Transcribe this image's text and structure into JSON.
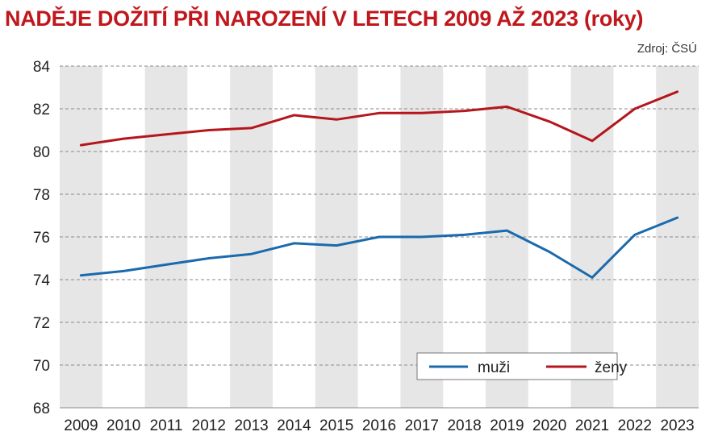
{
  "header": {
    "title": "NADĚJE DOŽITÍ PŘI NAROZENÍ V LETECH 2009 AŽ 2023 (roky)",
    "source": "Zdroj: ČSÚ"
  },
  "chart_data": {
    "type": "line",
    "title": "NADĚJE DOŽITÍ PŘI NAROZENÍ V LETECH 2009 AŽ 2023 (roky)",
    "xlabel": "",
    "ylabel": "",
    "ylim": [
      68,
      84
    ],
    "yticks": [
      68,
      70,
      72,
      74,
      76,
      78,
      80,
      82,
      84
    ],
    "x": [
      "2009",
      "2010",
      "2011",
      "2012",
      "2013",
      "2014",
      "2015",
      "2016",
      "2017",
      "2018",
      "2019",
      "2020",
      "2021",
      "2022",
      "2023"
    ],
    "series": [
      {
        "name": "muži",
        "color": "#1a6aad",
        "values": [
          74.2,
          74.4,
          74.7,
          75.0,
          75.2,
          75.7,
          75.6,
          76.0,
          76.0,
          76.1,
          76.3,
          75.3,
          74.1,
          76.1,
          76.9
        ]
      },
      {
        "name": "ženy",
        "color": "#b5161c",
        "values": [
          80.3,
          80.6,
          80.8,
          81.0,
          81.1,
          81.7,
          81.5,
          81.8,
          81.8,
          81.9,
          82.1,
          81.4,
          80.5,
          82.0,
          82.8
        ]
      }
    ],
    "grid": true,
    "legend": "bottom-right",
    "band_color": "#e6e6e6"
  }
}
